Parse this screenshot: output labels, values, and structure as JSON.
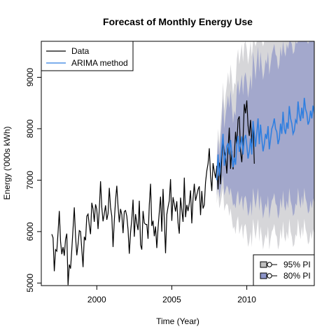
{
  "chart_data": {
    "type": "line",
    "title": "Forecast of Monthly Energy Use",
    "xlabel": "Time (Year)",
    "ylabel": "Energy ('000s kWh)",
    "xlim": [
      1996.3,
      2014.5
    ],
    "ylim": [
      4950,
      9700
    ],
    "x_ticks": [
      2000,
      2005,
      2010
    ],
    "x_tick_labels": [
      "2000",
      "2005",
      "2010"
    ],
    "y_ticks": [
      5000,
      6000,
      7000,
      8000,
      9000
    ],
    "y_tick_labels": [
      "5000",
      "6000",
      "7000",
      "8000",
      "9000"
    ],
    "grid": false,
    "legend": {
      "placement": "top-left",
      "entries": [
        {
          "name": "Data",
          "color": "#000000"
        },
        {
          "name": "ARIMA method",
          "color": "#2f7fe0"
        }
      ]
    },
    "pi_legend": {
      "placement": "bottom-right",
      "entries": [
        {
          "name": "95% PI",
          "color": "#bfbfbf"
        },
        {
          "name": "80% PI",
          "color": "#8d95c8"
        }
      ]
    },
    "colors": {
      "data_line": "#000000",
      "forecast_line": "#2f7fe0",
      "pi95": "#d6d6d9",
      "pi80": "#a3a8cc"
    },
    "series": [
      {
        "name": "Data",
        "start": 1997.0,
        "step": 0.08333333,
        "values": [
          5950,
          5880,
          5230,
          5650,
          5620,
          5980,
          6400,
          5810,
          5560,
          5700,
          5530,
          5850,
          5960,
          4960,
          5360,
          5280,
          5650,
          6060,
          6470,
          5910,
          5540,
          5750,
          6020,
          6000,
          5650,
          5310,
          5900,
          5830,
          6300,
          6340,
          6120,
          5950,
          6560,
          6440,
          6190,
          6530,
          6430,
          6050,
          6430,
          6980,
          6470,
          6200,
          6350,
          6510,
          6230,
          6350,
          6850,
          6470,
          6300,
          5700,
          6210,
          6610,
          6890,
          6490,
          6180,
          6440,
          6330,
          5970,
          6390,
          6410,
          6300,
          6040,
          5570,
          5980,
          6240,
          6620,
          5900,
          6340,
          6160,
          6030,
          6600,
          5740,
          5650,
          6400,
          6170,
          6140,
          6140,
          5860,
          6520,
          6930,
          6110,
          6210,
          5910,
          6100,
          5680,
          6070,
          6380,
          6680,
          6000,
          6830,
          6230,
          5580,
          6330,
          6480,
          6600,
          7020,
          6210,
          6670,
          6530,
          6390,
          6590,
          6170,
          5960,
          6660,
          6420,
          6190,
          7050,
          6280,
          6520,
          6400,
          6550,
          6800,
          6160,
          6640,
          6930,
          6600,
          6710,
          6820,
          6880,
          6320,
          6790,
          6450,
          6520,
          6960,
          7180,
          7320,
          7620,
          7080,
          6790,
          7330,
          7170,
          7040,
          7280,
          6820,
          7340,
          6920,
          7460,
          7760,
          7560,
          7450,
          7130,
          7610,
          8020,
          7220,
          7570,
          7210,
          7460,
          7940,
          7660,
          8180,
          8240,
          7550,
          7350,
          7790,
          8480,
          8300,
          8550,
          8060,
          7860,
          8170,
          7710,
          8130,
          7320
        ]
      },
      {
        "name": "ARIMA method",
        "start": 2008.0,
        "step": 0.08333333,
        "values": [
          7000,
          7500,
          7080,
          7320,
          7600,
          7900,
          7280,
          7460,
          7660,
          7720,
          7500,
          7780,
          7520,
          7250,
          7440,
          7300,
          7700,
          7860,
          7550,
          7700,
          7850,
          7500,
          7800,
          7880,
          7680,
          7420,
          7560,
          7810,
          7500,
          8150,
          7910,
          7650,
          7920,
          8200,
          7700,
          8080,
          7800,
          7560,
          7700,
          7900,
          7800,
          8050,
          7600,
          7800,
          8000,
          8070,
          8200,
          8000,
          7940,
          7700,
          7800,
          8100,
          7900,
          8330,
          8000,
          7900,
          8120,
          8000,
          8440,
          8200,
          8100,
          7900,
          7960,
          8170,
          8120,
          8530,
          8280,
          8150,
          8410,
          8200,
          8600,
          8380,
          8300,
          8080,
          8150,
          8350,
          8200,
          8450,
          8300,
          8200,
          8500,
          8400,
          8800,
          8500,
          8390,
          8250,
          8350,
          8650,
          8450,
          8900,
          8600,
          8450,
          8700,
          8500,
          9050,
          8700,
          8550,
          8400,
          8600,
          8780
        ]
      }
    ],
    "pi80": {
      "start": 2008.0,
      "step": 0.08333333,
      "lower": [
        6700,
        7000,
        6650,
        6800,
        6950,
        7100,
        6700,
        6800,
        6900,
        6850,
        6700,
        6850,
        6700,
        6500,
        6550,
        6450,
        6700,
        6800,
        6500,
        6600,
        6700,
        6400,
        6650,
        6700,
        6550,
        6300,
        6400,
        6600,
        6300,
        6850,
        6650,
        6450,
        6650,
        6850,
        6400,
        6700,
        6500,
        6250,
        6400,
        6550,
        6450,
        6700,
        6250,
        6450,
        6600,
        6650,
        6750,
        6550,
        6500,
        6250,
        6350,
        6650,
        6450,
        6800,
        6500,
        6400,
        6600,
        6450,
        6850,
        6600,
        6500,
        6300,
        6350,
        6550,
        6500,
        6850,
        6600,
        6450,
        6700,
        6500,
        6850,
        6650,
        6550,
        6350,
        6400,
        6600,
        6450,
        6650,
        6550,
        6450,
        6700,
        6600,
        6950,
        6700,
        6600,
        6450,
        6550,
        6800,
        6650,
        7000,
        6750,
        6600,
        6850,
        6650,
        7150,
        6850,
        6700,
        6550,
        6750,
        6900
      ],
      "upper": [
        7300,
        7800,
        7500,
        7800,
        8150,
        8600,
        8000,
        8250,
        8450,
        8650,
        8400,
        8750,
        8450,
        8100,
        8350,
        8250,
        8750,
        8950,
        8650,
        8850,
        9050,
        8650,
        9000,
        9100,
        8900,
        8600,
        8800,
        9050,
        8750,
        9500,
        9250,
        8950,
        9300,
        9600,
        9100,
        9500,
        9200,
        8950,
        9100,
        9350,
        9250,
        9500,
        9050,
        9250,
        9450,
        9550,
        9650,
        9450,
        9400,
        9150,
        9250,
        9600,
        9400,
        9700,
        9500,
        9400,
        9650,
        9550,
        9700,
        9700,
        9650,
        9450,
        9500,
        9700,
        9650,
        9700,
        9700,
        9700,
        9700,
        9700,
        9700,
        9700,
        9700,
        9650,
        9700,
        9700,
        9700,
        9700,
        9700,
        9700,
        9700,
        9700,
        9700,
        9700,
        9700,
        9700,
        9700,
        9700,
        9700,
        9700,
        9700,
        9700,
        9700,
        9700,
        9700,
        9700,
        9700,
        9700,
        9700,
        9700
      ]
    },
    "pi95": {
      "start": 2008.0,
      "step": 0.08333333,
      "lower": [
        6550,
        6800,
        6450,
        6550,
        6700,
        6850,
        6400,
        6500,
        6550,
        6500,
        6300,
        6450,
        6250,
        6050,
        6100,
        5950,
        6200,
        6300,
        5950,
        6050,
        6150,
        5850,
        6100,
        6150,
        5950,
        5700,
        5800,
        6000,
        5700,
        6250,
        6050,
        5850,
        6050,
        6250,
        5800,
        6100,
        5900,
        5650,
        5800,
        5950,
        5850,
        6100,
        5650,
        5850,
        6000,
        6050,
        6150,
        5950,
        5900,
        5650,
        5750,
        6050,
        5850,
        6200,
        5900,
        5800,
        6000,
        5850,
        6250,
        6000,
        5900,
        5700,
        5750,
        5950,
        5900,
        6250,
        6000,
        5850,
        6100,
        5900,
        6250,
        6050,
        5950,
        5750,
        5800,
        6000,
        5850,
        6050,
        5950,
        5850,
        6100,
        6000,
        6350,
        6100,
        6000,
        5850,
        5950,
        6200,
        6050,
        6400,
        6150,
        6000,
        6250,
        6050,
        6550,
        6250,
        6100,
        5950,
        6150,
        6300
      ],
      "upper": [
        7450,
        8000,
        7700,
        8050,
        8400,
        8900,
        8350,
        8650,
        8850,
        9100,
        8850,
        9250,
        9000,
        8650,
        8900,
        8850,
        9350,
        9550,
        9250,
        9450,
        9650,
        9300,
        9650,
        9700,
        9550,
        9250,
        9450,
        9700,
        9400,
        9700,
        9700,
        9600,
        9700,
        9700,
        9700,
        9700,
        9700,
        9600,
        9700,
        9700,
        9700,
        9700,
        9700,
        9700,
        9700,
        9700,
        9700,
        9700,
        9700,
        9700,
        9700,
        9700,
        9700,
        9700,
        9700,
        9700,
        9700,
        9700,
        9700,
        9700,
        9700,
        9700,
        9700,
        9700,
        9700,
        9700,
        9700,
        9700,
        9700,
        9700,
        9700,
        9700,
        9700,
        9700,
        9700,
        9700,
        9700,
        9700,
        9700,
        9700,
        9700,
        9700,
        9700,
        9700,
        9700,
        9700,
        9700,
        9700,
        9700,
        9700,
        9700,
        9700,
        9700,
        9700,
        9700,
        9700,
        9700,
        9700,
        9700,
        9700
      ]
    }
  }
}
